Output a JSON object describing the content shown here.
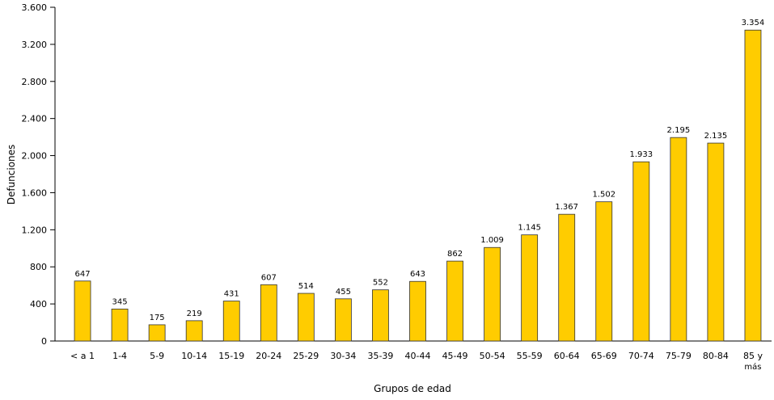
{
  "chart_data": {
    "type": "bar",
    "ylabel": "Defunciones",
    "xlabel": "Grupos de edad",
    "categories": [
      "< a 1",
      "1-4",
      "5-9",
      "10-14",
      "15-19",
      "20-24",
      "25-29",
      "30-34",
      "35-39",
      "40-44",
      "45-49",
      "50-54",
      "55-59",
      "60-64",
      "65-69",
      "70-74",
      "75-79",
      "80-84",
      "85 y más"
    ],
    "values": [
      647,
      345,
      175,
      219,
      431,
      607,
      514,
      455,
      552,
      643,
      862,
      1009,
      1145,
      1367,
      1502,
      1933,
      2195,
      2135,
      3354
    ],
    "value_labels": [
      "647",
      "345",
      "175",
      "219",
      "431",
      "607",
      "514",
      "455",
      "552",
      "643",
      "862",
      "1.009",
      "1.145",
      "1.367",
      "1.502",
      "1.933",
      "2.195",
      "2.135",
      "3.354"
    ],
    "color": "#ffcc00",
    "ylim": [
      0,
      3600
    ],
    "yticks": [
      0,
      400,
      800,
      {
        "value": 1200,
        "label": "1.200"
      },
      {
        "value": 1600,
        "label": "1.600"
      },
      {
        "value": 2000,
        "label": "2.000"
      },
      {
        "value": 2400,
        "label": "2.400"
      },
      {
        "value": 2800,
        "label": "2.800"
      },
      {
        "value": 3200,
        "label": "3.200"
      },
      {
        "value": 3600,
        "label": "3.600"
      }
    ],
    "grid": false
  }
}
